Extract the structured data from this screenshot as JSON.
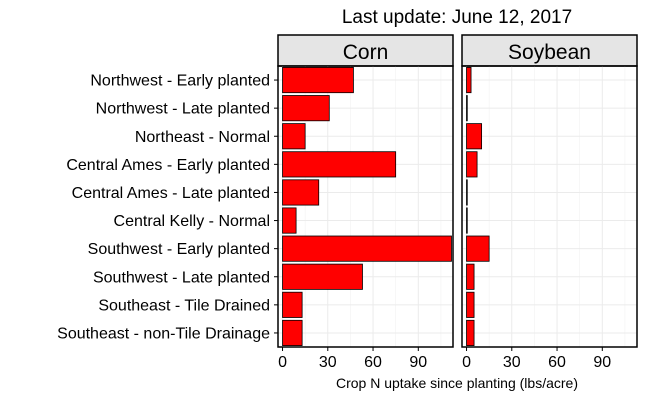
{
  "chart_data": {
    "type": "bar",
    "orientation": "horizontal",
    "title": "Last update: June 12, 2017",
    "xlabel": "Crop N uptake since planting (lbs/acre)",
    "ylabel": "",
    "xlim": [
      -3,
      113
    ],
    "x_ticks": [
      0,
      30,
      60,
      90
    ],
    "grid": true,
    "bar_color": "#ff0000",
    "bar_edge_color": "#000000",
    "strip_color": "#e5e5e5",
    "categories": [
      "Northwest - Early planted",
      "Northwest - Late planted",
      "Northeast - Normal",
      "Central Ames - Early planted",
      "Central Ames - Late planted",
      "Central Kelly - Normal",
      "Southwest - Early planted",
      "Southwest - Late planted",
      "Southeast - Tile Drained",
      "Southeast - non-Tile Drainage"
    ],
    "panels": [
      {
        "name": "Corn",
        "values": [
          47,
          31,
          15,
          75,
          24,
          9,
          112,
          53,
          13,
          13
        ]
      },
      {
        "name": "Soybean",
        "values": [
          3,
          0.5,
          10,
          7,
          0.5,
          0.5,
          15,
          5,
          5,
          5
        ]
      }
    ]
  }
}
